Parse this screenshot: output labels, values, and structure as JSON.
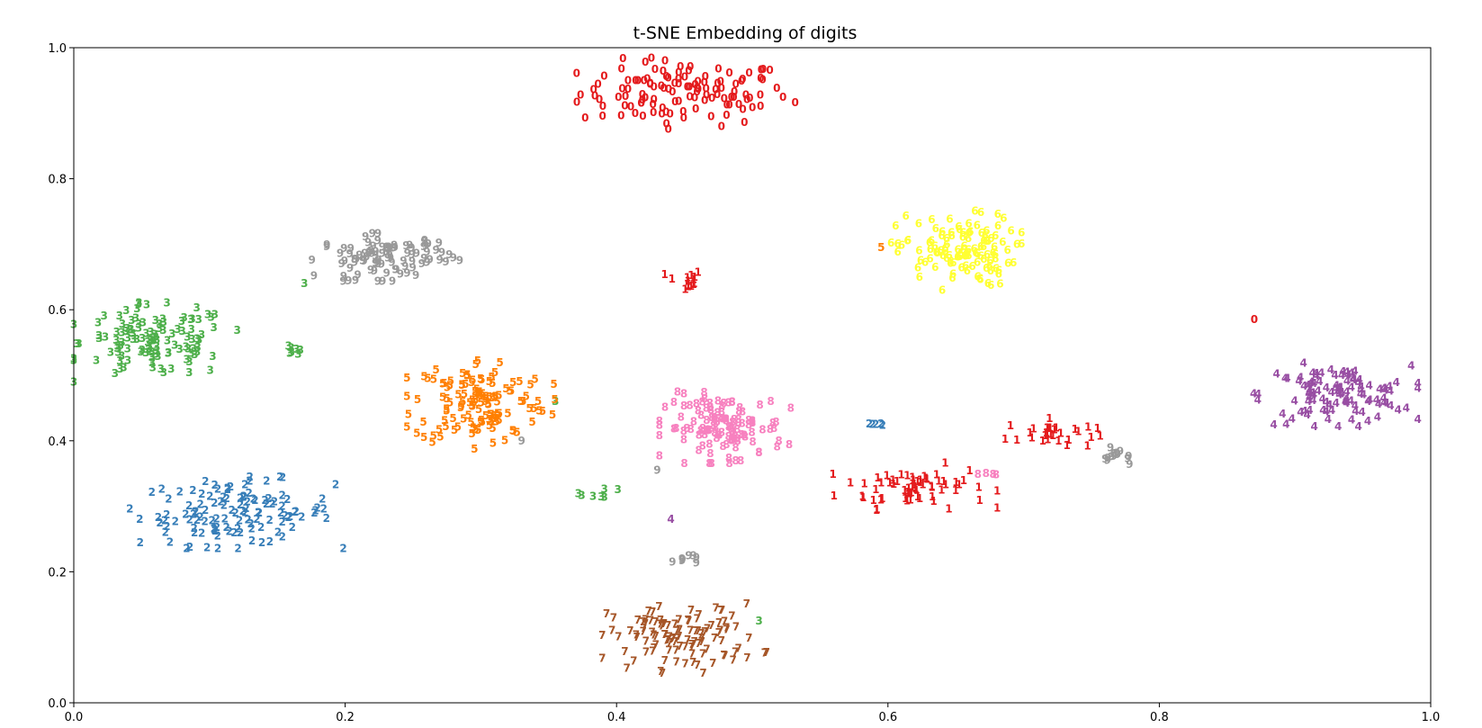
{
  "chart_data": {
    "type": "scatter",
    "title": "t-SNE Embedding of digits",
    "xlabel": "",
    "ylabel": "",
    "xlim": [
      0.0,
      1.0
    ],
    "ylim": [
      0.0,
      1.0
    ],
    "xticks": [
      "0.0",
      "0.2",
      "0.4",
      "0.6",
      "0.8",
      "1.0"
    ],
    "yticks": [
      "0.0",
      "0.2",
      "0.4",
      "0.6",
      "0.8",
      "1.0"
    ],
    "grid": false,
    "legend": "none",
    "colors": {
      "0": "#e41a1c",
      "1": "#e41a1c",
      "2": "#377eb8",
      "3": "#4daf4a",
      "4": "#984ea3",
      "5": "#ff7f00",
      "6": "#ffff33",
      "7": "#a65628",
      "8": "#f781bf",
      "9": "#999999"
    },
    "clusters": [
      {
        "label": "0",
        "center": [
          0.45,
          0.93
        ],
        "spread": [
          0.07,
          0.045
        ],
        "count": 120
      },
      {
        "label": "0",
        "center": [
          0.87,
          0.585
        ],
        "spread": [
          0,
          0
        ],
        "count": 1
      },
      {
        "label": "1",
        "center": [
          0.45,
          0.645
        ],
        "spread": [
          0.012,
          0.015
        ],
        "count": 14
      },
      {
        "label": "1",
        "center": [
          0.62,
          0.33
        ],
        "spread": [
          0.05,
          0.03
        ],
        "count": 65
      },
      {
        "label": "1",
        "center": [
          0.72,
          0.41
        ],
        "spread": [
          0.03,
          0.02
        ],
        "count": 30
      },
      {
        "label": "2",
        "center": [
          0.12,
          0.29
        ],
        "spread": [
          0.065,
          0.045
        ],
        "count": 120
      },
      {
        "label": "2",
        "center": [
          0.59,
          0.425
        ],
        "spread": [
          0.012,
          0.004
        ],
        "count": 5
      },
      {
        "label": "3",
        "center": [
          0.06,
          0.55
        ],
        "spread": [
          0.05,
          0.05
        ],
        "count": 120
      },
      {
        "label": "3",
        "center": [
          0.16,
          0.54
        ],
        "spread": [
          0.01,
          0.008
        ],
        "count": 7
      },
      {
        "label": "3",
        "center": [
          0.39,
          0.32
        ],
        "spread": [
          0.015,
          0.008
        ],
        "count": 7
      },
      {
        "label": "3",
        "center": [
          0.17,
          0.64
        ],
        "spread": [
          0,
          0
        ],
        "count": 1
      },
      {
        "label": "3",
        "center": [
          0.355,
          0.46
        ],
        "spread": [
          0,
          0
        ],
        "count": 1
      },
      {
        "label": "3",
        "center": [
          0.505,
          0.125
        ],
        "spread": [
          0,
          0
        ],
        "count": 1
      },
      {
        "label": "4",
        "center": [
          0.93,
          0.47
        ],
        "spread": [
          0.05,
          0.04
        ],
        "count": 110
      },
      {
        "label": "4",
        "center": [
          0.44,
          0.28
        ],
        "spread": [
          0,
          0
        ],
        "count": 1
      },
      {
        "label": "5",
        "center": [
          0.3,
          0.46
        ],
        "spread": [
          0.045,
          0.06
        ],
        "count": 130
      },
      {
        "label": "5",
        "center": [
          0.595,
          0.695
        ],
        "spread": [
          0,
          0
        ],
        "count": 1
      },
      {
        "label": "6",
        "center": [
          0.65,
          0.69
        ],
        "spread": [
          0.04,
          0.05
        ],
        "count": 120
      },
      {
        "label": "7",
        "center": [
          0.45,
          0.1
        ],
        "spread": [
          0.05,
          0.045
        ],
        "count": 110
      },
      {
        "label": "8",
        "center": [
          0.48,
          0.42
        ],
        "spread": [
          0.04,
          0.045
        ],
        "count": 120
      },
      {
        "label": "8",
        "center": [
          0.67,
          0.35
        ],
        "spread": [
          0.008,
          0.003
        ],
        "count": 4
      },
      {
        "label": "9",
        "center": [
          0.23,
          0.68
        ],
        "spread": [
          0.045,
          0.03
        ],
        "count": 95
      },
      {
        "label": "9",
        "center": [
          0.45,
          0.22
        ],
        "spread": [
          0.008,
          0.008
        ],
        "count": 8
      },
      {
        "label": "9",
        "center": [
          0.77,
          0.375
        ],
        "spread": [
          0.01,
          0.012
        ],
        "count": 14
      },
      {
        "label": "9",
        "center": [
          0.33,
          0.4
        ],
        "spread": [
          0,
          0
        ],
        "count": 1
      },
      {
        "label": "9",
        "center": [
          0.43,
          0.355
        ],
        "spread": [
          0,
          0
        ],
        "count": 1
      }
    ]
  }
}
